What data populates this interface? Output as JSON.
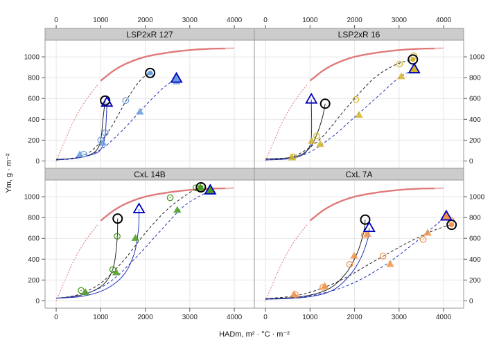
{
  "chart_data": {
    "type": "scatter",
    "xlabel": "HADm, m² · °C · m⁻²",
    "ylabel": "Ym, g · m⁻²",
    "xlim": [
      -250,
      4450
    ],
    "ylim": [
      -70,
      1160
    ],
    "x_ticks": [
      0,
      1000,
      2000,
      3000,
      4000
    ],
    "y_ticks": [
      0,
      200,
      400,
      600,
      800,
      1000
    ],
    "x_tick_labels": [
      "0",
      "1000",
      "2000",
      "3000",
      "4000"
    ],
    "y_tick_labels": [
      "0",
      "200",
      "400",
      "600",
      "800",
      "1000"
    ],
    "grid": true,
    "colors": {
      "potential_curve": "#e07a7a",
      "blue_fit": "#2233bb",
      "black_fit": "#222222",
      "big_circle": "#000000",
      "big_triangle": "#0000bb",
      "strip_fill": "#cccccc",
      "panel_border": "#999999"
    },
    "panels": [
      {
        "title": "LSP2xR 127",
        "color": "#6a9de0",
        "circles": [
          [
            620,
            65
          ],
          [
            1000,
            200
          ],
          [
            1100,
            270
          ],
          [
            1560,
            580
          ],
          [
            2110,
            830
          ]
        ],
        "triangles": [
          [
            530,
            60
          ],
          [
            1050,
            170
          ],
          [
            1880,
            470
          ],
          [
            2700,
            760
          ]
        ],
        "big_circle": [
          1100,
          580
        ],
        "big_triangle_open": [
          1140,
          560
        ],
        "big_circle2": [
          2110,
          845
        ],
        "big_triangle_filled": [
          2700,
          790
        ],
        "fits": [
          {
            "color": "black",
            "dash": false,
            "x": [
              0,
              400,
              700,
              900,
              1000,
              1050,
              1100
            ],
            "y": [
              15,
              25,
              50,
              100,
              200,
              400,
              580
            ]
          },
          {
            "color": "blue",
            "dash": false,
            "x": [
              0,
              400,
              800,
              1000,
              1100,
              1140
            ],
            "y": [
              10,
              25,
              60,
              110,
              250,
              560
            ]
          },
          {
            "color": "black",
            "dash": true,
            "x": [
              0,
              400,
              800,
              1200,
              1600,
              1900,
              2110
            ],
            "y": [
              15,
              30,
              100,
              300,
              600,
              780,
              845
            ]
          },
          {
            "color": "blue",
            "dash": true,
            "x": [
              0,
              500,
              1000,
              1500,
              2000,
              2400,
              2700
            ],
            "y": [
              10,
              30,
              110,
              300,
              530,
              700,
              790
            ]
          }
        ]
      },
      {
        "title": "LSP2xR 16",
        "color": "#d4b52a",
        "circles": [
          [
            620,
            40
          ],
          [
            1150,
            240
          ],
          [
            2030,
            590
          ],
          [
            3010,
            930
          ],
          [
            3330,
            1010
          ]
        ],
        "triangles": [
          [
            600,
            30
          ],
          [
            1040,
            190
          ],
          [
            1230,
            160
          ],
          [
            2100,
            440
          ],
          [
            3050,
            810
          ]
        ],
        "big_circle": [
          1340,
          550
        ],
        "big_triangle_open": [
          1030,
          590
        ],
        "big_circle2": [
          3310,
          975
        ],
        "big_triangle_filled": [
          3340,
          880
        ],
        "fits": [
          {
            "color": "black",
            "dash": false,
            "x": [
              0,
              500,
              800,
              1000,
              1150,
              1280,
              1340
            ],
            "y": [
              20,
              30,
              60,
              130,
              250,
              420,
              550
            ]
          },
          {
            "color": "blue",
            "dash": false,
            "x": [
              0,
              500,
              800,
              950,
              1030,
              1030
            ],
            "y": [
              10,
              20,
              50,
              110,
              230,
              590
            ]
          },
          {
            "color": "black",
            "dash": true,
            "x": [
              0,
              600,
              1200,
              1800,
              2400,
              2900,
              3310
            ],
            "y": [
              10,
              40,
              200,
              500,
              780,
              920,
              975
            ]
          },
          {
            "color": "blue",
            "dash": true,
            "x": [
              0,
              800,
              1400,
              2000,
              2600,
              3000,
              3340
            ],
            "y": [
              10,
              50,
              200,
              420,
              650,
              800,
              880
            ]
          }
        ]
      },
      {
        "title": "CxL 14B",
        "color": "#4a9a20",
        "circles": [
          [
            560,
            100
          ],
          [
            1270,
            300
          ],
          [
            1370,
            620
          ],
          [
            2560,
            990
          ],
          [
            3140,
            1085
          ],
          [
            3290,
            1100
          ]
        ],
        "triangles": [
          [
            660,
            80
          ],
          [
            1350,
            270
          ],
          [
            1780,
            600
          ],
          [
            2720,
            870
          ],
          [
            3220,
            1080
          ]
        ],
        "big_circle": [
          1380,
          790
        ],
        "big_triangle_open": [
          1860,
          880
        ],
        "big_circle2": [
          3250,
          1090
        ],
        "big_triangle_filled": [
          3460,
          1060
        ],
        "fits": [
          {
            "color": "black",
            "dash": false,
            "x": [
              0,
              500,
              900,
              1150,
              1300,
              1370,
              1380
            ],
            "y": [
              25,
              50,
              110,
              200,
              350,
              600,
              790
            ]
          },
          {
            "color": "blue",
            "dash": false,
            "x": [
              0,
              600,
              1100,
              1500,
              1750,
              1850,
              1860
            ],
            "y": [
              25,
              45,
              110,
              240,
              450,
              700,
              880
            ]
          },
          {
            "color": "black",
            "dash": true,
            "x": [
              0,
              500,
              1000,
              1500,
              2000,
              2500,
              3000,
              3250
            ],
            "y": [
              25,
              60,
              170,
              380,
              650,
              880,
              1040,
              1090
            ]
          },
          {
            "color": "blue",
            "dash": true,
            "x": [
              0,
              600,
              1200,
              1800,
              2400,
              2900,
              3460
            ],
            "y": [
              25,
              60,
              180,
              420,
              700,
              920,
              1060
            ]
          }
        ]
      },
      {
        "title": "CxL 7A",
        "color": "#f0924a",
        "circles": [
          [
            670,
            60
          ],
          [
            1290,
            130
          ],
          [
            1890,
            350
          ],
          [
            2220,
            630
          ],
          [
            2640,
            430
          ],
          [
            3540,
            590
          ],
          [
            4170,
            770
          ]
        ],
        "triangles": [
          [
            640,
            60
          ],
          [
            1330,
            140
          ],
          [
            1990,
            430
          ],
          [
            2290,
            640
          ],
          [
            2800,
            350
          ],
          [
            3640,
            650
          ],
          [
            4100,
            800
          ]
        ],
        "big_circle": [
          2240,
          780
        ],
        "big_triangle_open": [
          2330,
          700
        ],
        "big_circle2": [
          4180,
          730
        ],
        "big_triangle_filled": [
          4060,
          810
        ],
        "fits": [
          {
            "color": "black",
            "dash": false,
            "x": [
              0,
              800,
              1400,
              1800,
              2050,
              2200,
              2240
            ],
            "y": [
              20,
              40,
              110,
              260,
              450,
              650,
              780
            ]
          },
          {
            "color": "blue",
            "dash": false,
            "x": [
              0,
              900,
              1500,
              1900,
              2150,
              2300,
              2330
            ],
            "y": [
              15,
              35,
              100,
              250,
              420,
              600,
              700
            ]
          },
          {
            "color": "black",
            "dash": true,
            "x": [
              0,
              800,
              1600,
              2400,
              3200,
              3800,
              4180
            ],
            "y": [
              20,
              60,
              180,
              370,
              560,
              680,
              730
            ]
          },
          {
            "color": "blue",
            "dash": true,
            "x": [
              0,
              900,
              1800,
              2600,
              3300,
              3800,
              4060
            ],
            "y": [
              15,
              40,
              140,
              320,
              540,
              720,
              810
            ]
          }
        ]
      }
    ],
    "potential_curve": {
      "dotted_x": [
        0,
        200,
        400,
        600,
        800,
        950
      ],
      "dotted_y": [
        0,
        200,
        390,
        540,
        660,
        740
      ],
      "solid_x": [
        1000,
        1300,
        1600,
        2000,
        2500,
        3000,
        3500,
        3800
      ],
      "solid_y": [
        770,
        870,
        940,
        1000,
        1040,
        1065,
        1078,
        1080
      ],
      "faded_x": [
        3800,
        4000
      ],
      "faded_y": [
        1080,
        1082
      ]
    }
  }
}
